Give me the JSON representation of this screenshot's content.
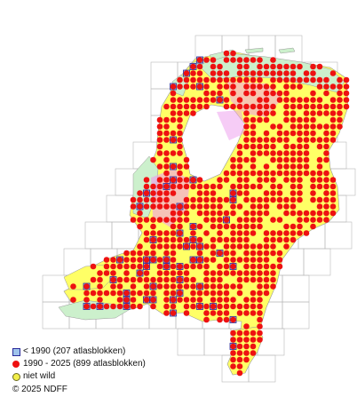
{
  "legend": {
    "items": [
      {
        "symbol": "blue-square",
        "label": "< 1990   (207 atlasblokken)"
      },
      {
        "symbol": "red-dot",
        "label": "1990 - 2025 (899 atlasblokken)"
      },
      {
        "symbol": "yellow-dot",
        "label": "niet wild"
      }
    ]
  },
  "copyright": "© 2025 NDFF",
  "colors": {
    "land": "#ffff66",
    "land_wet": "#ee99ee",
    "coastal": "#ccf0cc",
    "grid": "#b9b9b9",
    "record_recent": "#ee1111",
    "record_old_fill": "#9fc3ec",
    "record_old_stroke": "#2a2a9a"
  }
}
